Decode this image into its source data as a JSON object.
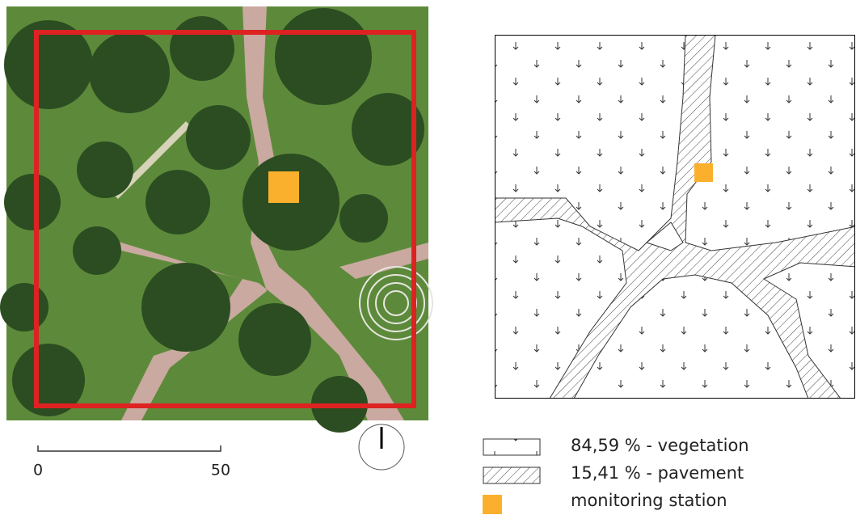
{
  "scale_bar": {
    "start": "0",
    "end": "50"
  },
  "legend": [
    {
      "label": "84,59 % - vegetation"
    },
    {
      "label": "15,41 % - pavement"
    },
    {
      "label": "monitoring station"
    }
  ]
}
